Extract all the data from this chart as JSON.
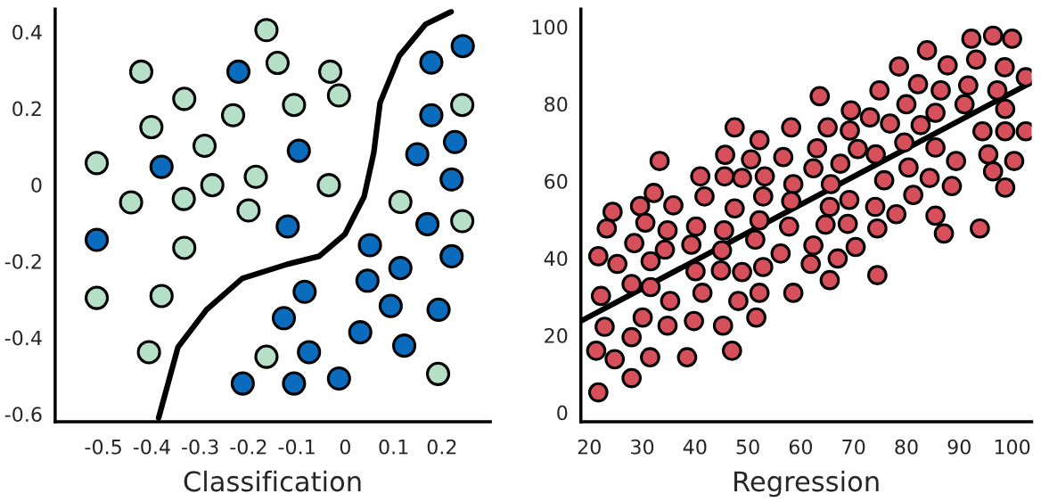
{
  "chart_data": [
    {
      "type": "scatter",
      "xlabel": "Classification",
      "xlim": [
        -0.6,
        0.3
      ],
      "ylim": [
        -0.62,
        0.46
      ],
      "xticks": [
        -0.5,
        -0.4,
        -0.3,
        -0.2,
        -0.1,
        0,
        0.1,
        0.2
      ],
      "yticks": [
        -0.6,
        -0.4,
        -0.2,
        0,
        0.2,
        0.4
      ],
      "grid": false,
      "series": [
        {
          "marker": "circle",
          "color": "#b5dfc6",
          "x": [
            -0.163,
            -0.422,
            -0.14,
            -0.031,
            -0.333,
            -0.013,
            -0.106,
            -0.232,
            -0.401,
            -0.291,
            -0.514,
            -0.185,
            -0.275,
            -0.034,
            -0.443,
            -0.334,
            -0.2,
            0.114,
            0.242,
            -0.333,
            -0.514,
            -0.38,
            -0.406,
            -0.163,
            0.192,
            0.242
          ],
          "values": [
            0.405,
            0.296,
            0.319,
            0.296,
            0.225,
            0.234,
            0.209,
            0.182,
            0.151,
            0.102,
            0.057,
            0.021,
            -0.001,
            -0.001,
            -0.046,
            -0.037,
            -0.067,
            -0.045,
            -0.095,
            -0.165,
            -0.296,
            -0.291,
            -0.438,
            -0.45,
            -0.495,
            0.209
          ]
        },
        {
          "marker": "circle",
          "color": "#0b6bbd",
          "x": [
            -0.221,
            0.243,
            0.178,
            0.178,
            0.227,
            -0.096,
            0.149,
            -0.38,
            0.22,
            -0.119,
            0.17,
            -0.514,
            0.051,
            0.22,
            0.114,
            0.046,
            -0.084,
            0.094,
            0.193,
            -0.127,
            0.031,
            0.122,
            -0.075,
            -0.212,
            -0.106,
            -0.013
          ],
          "values": [
            0.296,
            0.363,
            0.32,
            0.182,
            0.112,
            0.089,
            0.08,
            0.047,
            0.014,
            -0.109,
            -0.103,
            -0.144,
            -0.158,
            -0.187,
            -0.218,
            -0.251,
            -0.28,
            -0.317,
            -0.327,
            -0.349,
            -0.386,
            -0.421,
            -0.438,
            -0.52,
            -0.52,
            -0.507
          ]
        },
        {
          "type": "line",
          "color": "#000000",
          "x": [
            -0.386,
            -0.346,
            -0.287,
            -0.213,
            -0.12,
            -0.054,
            -0.001,
            0.039,
            0.059,
            0.072,
            0.112,
            0.166,
            0.219
          ],
          "values": [
            -0.61,
            -0.425,
            -0.327,
            -0.245,
            -0.208,
            -0.187,
            -0.13,
            -0.031,
            0.084,
            0.215,
            0.338,
            0.42,
            0.453
          ]
        }
      ]
    },
    {
      "type": "scatter",
      "xlabel": "Regression",
      "xlim": [
        18.4,
        103.7
      ],
      "ylim": [
        -2.4,
        104.6
      ],
      "xticks": [
        20,
        30,
        40,
        50,
        60,
        70,
        80,
        90,
        100
      ],
      "yticks": [
        0,
        20,
        40,
        60,
        80,
        100
      ],
      "grid": false,
      "series": [
        {
          "marker": "circle",
          "color": "#d5505a",
          "x": [
            21.7,
            21.3,
            22.9,
            22.2,
            21.7,
            23.3,
            24.4,
            25.3,
            24.8,
            28.0,
            28.0,
            28.0,
            28.5,
            29.6,
            30.6,
            31.6,
            31.6,
            30.1,
            31.5,
            32.2,
            33.3,
            34.3,
            34.8,
            35.9,
            35.3,
            34.8,
            38.5,
            39.8,
            41.4,
            40.1,
            39.3,
            40.2,
            41.0,
            41.8,
            45.1,
            45.5,
            44.9,
            45.7,
            45.6,
            47.5,
            47.5,
            48.2,
            48.9,
            48.9,
            45.3,
            47.0,
            50.6,
            52.2,
            53.2,
            52.9,
            52.2,
            51.4,
            52.9,
            52.2,
            51.6,
            58.2,
            56.7,
            58.6,
            58.2,
            57.8,
            56.2,
            58.6,
            63.6,
            65.1,
            63.1,
            62.4,
            65.7,
            65.5,
            64.7,
            62.4,
            61.9,
            65.5,
            67.0,
            67.5,
            69.3,
            69.5,
            70.8,
            69.2,
            68.9,
            70.4,
            73.1,
            74.2,
            74.9,
            76.9,
            74.1,
            74.5,
            74.5,
            75.8,
            78.1,
            78.6,
            80.0,
            79.6,
            80.4,
            81.3,
            82.2,
            82.7,
            83.9,
            84.4,
            85.5,
            85.5,
            85.5,
            87.1,
            86.5,
            87.8,
            88.6,
            89.4,
            91.0,
            91.7,
            92.3,
            93.2,
            93.9,
            94.4,
            95.5,
            96.4,
            97.2,
            96.4,
            100.0,
            98.6,
            98.7,
            98.7,
            98.7,
            100.4,
            102.6,
            102.6
          ],
          "values": [
            5.2,
            16.0,
            22.2,
            30.2,
            40.5,
            47.7,
            52.0,
            38.5,
            13.8,
            8.9,
            19.5,
            33.3,
            43.9,
            53.5,
            49.2,
            39.2,
            32.5,
            24.6,
            14.3,
            56.9,
            65.2,
            42.2,
            47.2,
            53.7,
            28.9,
            22.5,
            14.3,
            23.7,
            31.0,
            36.6,
            43.5,
            48.2,
            61.2,
            56.0,
            42.0,
            47.2,
            36.8,
            66.8,
            61.2,
            73.9,
            52.9,
            28.9,
            36.4,
            60.8,
            22.5,
            16.0,
            65.6,
            70.6,
            61.2,
            56.0,
            49.8,
            44.8,
            37.7,
            31.0,
            24.6,
            73.9,
            66.2,
            59.2,
            54.8,
            48.2,
            41.2,
            31.0,
            82.0,
            73.9,
            68.5,
            63.3,
            59.2,
            53.3,
            48.7,
            43.3,
            38.5,
            34.3,
            39.9,
            64.5,
            73.1,
            78.3,
            68.3,
            55.1,
            48.9,
            42.9,
            76.5,
            66.9,
            83.5,
            74.9,
            53.3,
            47.7,
            35.6,
            60.2,
            51.4,
            89.7,
            79.9,
            70.0,
            63.5,
            56.4,
            85.1,
            74.5,
            93.9,
            60.8,
            77.7,
            68.7,
            51.0,
            46.4,
            83.5,
            90.0,
            58.7,
            65.2,
            79.9,
            84.8,
            96.9,
            91.5,
            47.7,
            72.9,
            66.9,
            62.5,
            83.5,
            97.7,
            96.9,
            89.5,
            78.7,
            72.9,
            58.3,
            65.2,
            72.9,
            86.9
          ]
        },
        {
          "type": "line",
          "color": "#000000",
          "x": [
            18.4,
            103.7
          ],
          "values": [
            23.7,
            85.6
          ]
        }
      ]
    }
  ]
}
